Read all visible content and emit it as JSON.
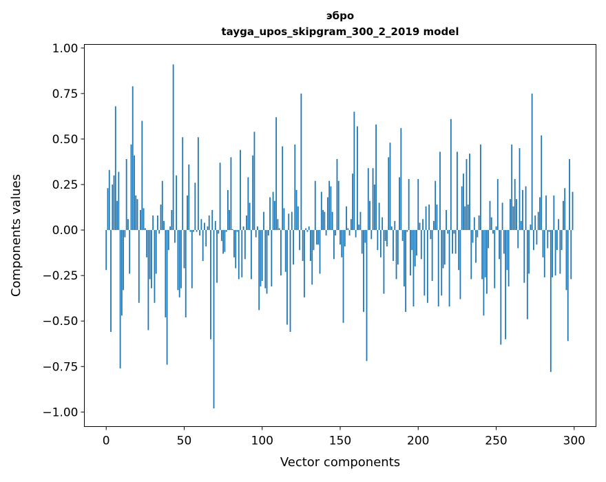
{
  "chart_data": {
    "type": "bar",
    "title_line1": "эбро",
    "title_line2": "tayga_upos_skipgram_300_2_2019 model",
    "xlabel": "Vector components",
    "ylabel": "Components values",
    "xlim": [
      -14,
      314
    ],
    "ylim": [
      -1.08,
      1.02
    ],
    "xticks": [
      0,
      50,
      100,
      150,
      200,
      250,
      300
    ],
    "xtick_labels": [
      "0",
      "50",
      "100",
      "150",
      "200",
      "250",
      "300"
    ],
    "yticks": [
      1.0,
      0.75,
      0.5,
      0.25,
      0.0,
      -0.25,
      -0.5,
      -0.75,
      -1.0
    ],
    "ytick_labels": [
      "1.00",
      "0.75",
      "0.50",
      "0.25",
      "0.00",
      "−0.25",
      "−0.50",
      "−0.75",
      "−1.00"
    ],
    "grid": false,
    "color": "#1f77b4",
    "values": [
      -0.22,
      0.23,
      0.33,
      -0.56,
      0.25,
      0.3,
      0.68,
      0.16,
      0.32,
      -0.76,
      -0.47,
      -0.33,
      -0.04,
      0.39,
      0.06,
      -0.24,
      0.47,
      0.79,
      0.41,
      0.19,
      0.17,
      -0.4,
      0.11,
      0.6,
      0.12,
      0.01,
      -0.15,
      -0.55,
      -0.27,
      -0.32,
      0.08,
      -0.4,
      -0.24,
      0.08,
      -0.02,
      0.14,
      0.27,
      0.05,
      -0.48,
      -0.74,
      -0.11,
      0.02,
      0.11,
      0.91,
      -0.07,
      0.3,
      -0.33,
      -0.37,
      -0.32,
      0.51,
      -0.21,
      -0.48,
      0.19,
      0.36,
      -0.01,
      -0.32,
      -0.01,
      0.26,
      -0.01,
      0.51,
      -0.03,
      0.06,
      -0.17,
      0.04,
      -0.09,
      0.02,
      0.08,
      -0.6,
      0.11,
      -0.98,
      0.05,
      -0.29,
      -0.02,
      0.37,
      -0.06,
      -0.13,
      -0.12,
      -0.01,
      0.22,
      0.11,
      0.4,
      0.005,
      -0.15,
      -0.21,
      -0.01,
      -0.27,
      0.44,
      -0.26,
      0.02,
      -0.16,
      0.08,
      0.29,
      0.15,
      -0.27,
      0.41,
      0.54,
      -0.04,
      0.02,
      -0.44,
      -0.31,
      -0.28,
      0.1,
      -0.32,
      -0.35,
      -0.03,
      0.18,
      -0.31,
      0.21,
      0.16,
      0.62,
      0.06,
      0.01,
      -0.25,
      0.46,
      0.12,
      -0.23,
      -0.52,
      0.09,
      -0.56,
      0.1,
      -0.19,
      0.47,
      0.22,
      0.13,
      -0.11,
      0.75,
      -0.17,
      -0.37,
      0.01,
      -0.01,
      0.02,
      -0.17,
      -0.3,
      -0.11,
      0.27,
      -0.08,
      -0.08,
      -0.24,
      0.21,
      0.11,
      0.1,
      -0.03,
      0.18,
      0.27,
      0.24,
      0.1,
      -0.16,
      -0.03,
      0.39,
      0.27,
      -0.08,
      -0.15,
      -0.51,
      -0.09,
      0.13,
      0.01,
      -0.03,
      0.06,
      0.31,
      0.65,
      -0.04,
      0.57,
      0.03,
      0.1,
      -0.13,
      -0.45,
      -0.07,
      -0.72,
      0.34,
      0.16,
      -0.05,
      0.34,
      0.25,
      0.58,
      -0.11,
      0.15,
      -0.15,
      0.07,
      -0.35,
      -0.06,
      -0.09,
      0.4,
      0.48,
      0.02,
      -0.17,
      0.05,
      -0.27,
      -0.19,
      0.29,
      0.56,
      -0.06,
      -0.31,
      -0.45,
      -0.01,
      0.28,
      -0.25,
      -0.11,
      -0.42,
      -0.2,
      -0.14,
      0.28,
      0.04,
      -0.16,
      0.06,
      -0.36,
      0.13,
      -0.4,
      0.14,
      -0.05,
      -0.28,
      0.05,
      0.27,
      0.14,
      -0.42,
      0.43,
      -0.36,
      -0.21,
      -0.19,
      0.11,
      -0.02,
      -0.42,
      0.61,
      -0.13,
      -0.02,
      -0.13,
      0.43,
      -0.22,
      -0.38,
      0.24,
      0.31,
      0.13,
      0.39,
      0.14,
      0.42,
      -0.27,
      -0.07,
      0.07,
      -0.18,
      -0.04,
      0.08,
      0.47,
      -0.27,
      -0.47,
      -0.26,
      -0.35,
      -0.1,
      0.16,
      0.07,
      -0.02,
      -0.32,
      0.02,
      0.28,
      -0.16,
      -0.63,
      0.15,
      -0.13,
      -0.6,
      -0.22,
      -0.31,
      0.17,
      0.47,
      0.13,
      0.28,
      0.17,
      -0.1,
      0.45,
      0.05,
      0.22,
      -0.29,
      0.24,
      -0.49,
      -0.24,
      0.03,
      0.75,
      -0.11,
      0.08,
      -0.08,
      0.1,
      0.18,
      0.52,
      -0.15,
      -0.26,
      0.19,
      -0.1,
      -0.01,
      -0.78,
      -0.26,
      0.19,
      -0.25,
      -0.11,
      0.06,
      -0.24,
      -0.11,
      0.16,
      0.23,
      -0.33,
      -0.61,
      0.39,
      -0.27,
      0.21
    ]
  }
}
